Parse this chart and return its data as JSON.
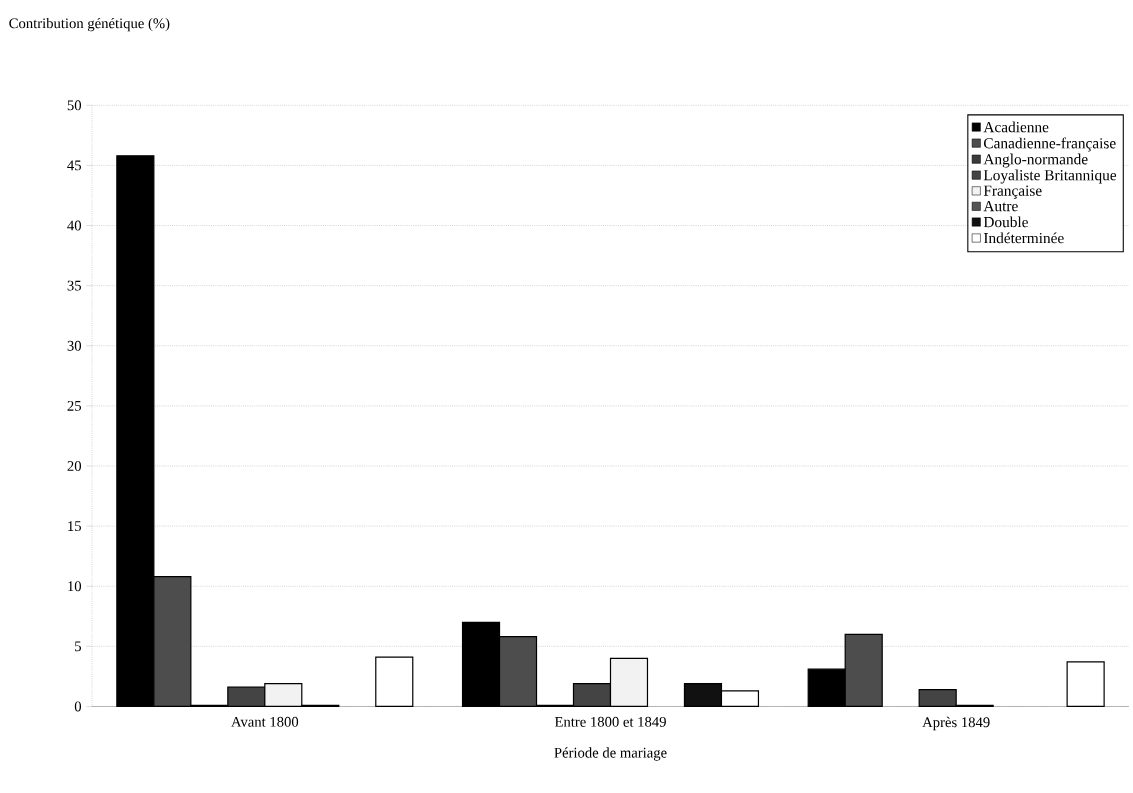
{
  "chart_data": {
    "type": "bar",
    "ylabel": "Contribution génétique (%)",
    "xlabel": "Période de mariage",
    "categories": [
      "Avant 1800",
      "Entre 1800 et 1849",
      "Après 1849"
    ],
    "series": [
      {
        "name": "Acadienne",
        "color": "#000000",
        "values": [
          45.8,
          7.0,
          3.1
        ]
      },
      {
        "name": "Canadienne-française",
        "color": "#4d4d4d",
        "values": [
          10.8,
          5.8,
          6.0
        ]
      },
      {
        "name": "Anglo-normande",
        "color": "#3a3a3a",
        "values": [
          0.1,
          0.1,
          null
        ]
      },
      {
        "name": "Loyaliste Britannique",
        "color": "#444444",
        "values": [
          1.6,
          1.9,
          1.4
        ]
      },
      {
        "name": "Française",
        "color": "#f2f2f2",
        "values": [
          1.9,
          4.0,
          0.1
        ]
      },
      {
        "name": "Autre",
        "color": "#555555",
        "values": [
          0.1,
          null,
          null
        ]
      },
      {
        "name": "Double",
        "color": "#111111",
        "values": [
          null,
          1.9,
          null
        ]
      },
      {
        "name": "Indéterminée",
        "color": "#ffffff",
        "values": [
          4.1,
          1.3,
          3.7
        ]
      }
    ],
    "ylim": [
      0,
      50
    ],
    "yticks": [
      0,
      5,
      10,
      15,
      20,
      25,
      30,
      35,
      40,
      45,
      50
    ],
    "grid": "y",
    "legend": "top right"
  }
}
